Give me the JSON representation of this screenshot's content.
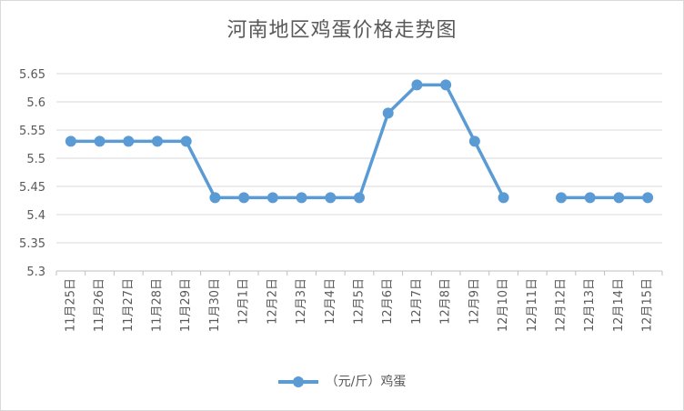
{
  "chart_data": {
    "type": "line",
    "title": "河南地区鸡蛋价格走势图",
    "categories": [
      "11月25日",
      "11月26日",
      "11月27日",
      "11月28日",
      "11月29日",
      "11月30日",
      "12月1日",
      "12月2日",
      "12月3日",
      "12月4日",
      "12月5日",
      "12月6日",
      "12月7日",
      "12月8日",
      "12月9日",
      "12月10日",
      "12月11日",
      "12月12日",
      "12月13日",
      "12月14日",
      "12月15日"
    ],
    "series": [
      {
        "name": "（元/斤）鸡蛋",
        "values": [
          5.53,
          5.53,
          5.53,
          5.53,
          5.53,
          5.43,
          5.43,
          5.43,
          5.43,
          5.43,
          5.43,
          5.58,
          5.63,
          5.63,
          5.53,
          5.43,
          null,
          5.43,
          5.43,
          5.43,
          5.43
        ]
      }
    ],
    "yticks": [
      "5.65",
      "5.6",
      "5.55",
      "5.5",
      "5.45",
      "5.4",
      "5.35",
      "5.3"
    ],
    "ylim": [
      5.3,
      5.65
    ],
    "grid": "horizontal",
    "legend_position": "bottom",
    "color": "#5b9bd5",
    "xlabel": "",
    "ylabel": ""
  }
}
